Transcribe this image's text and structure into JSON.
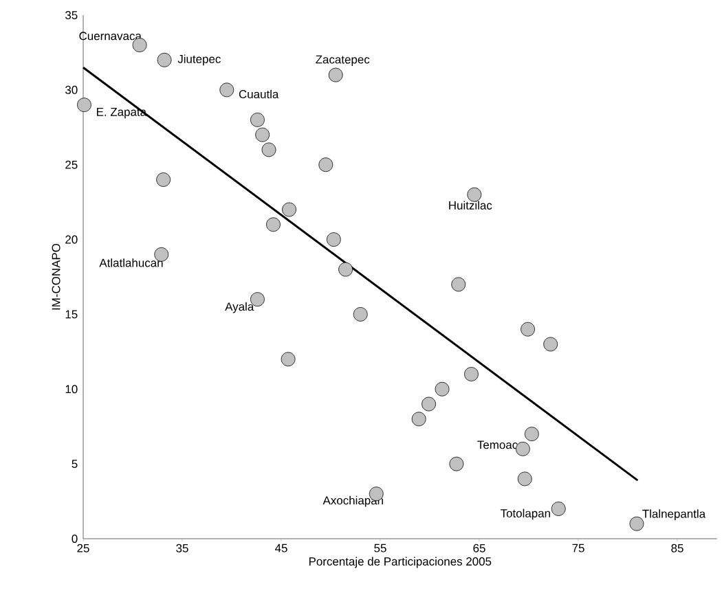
{
  "chart_data": {
    "type": "scatter",
    "xlabel": "Porcentaje de Participaciones 2005",
    "ylabel": "IM-CONAPO",
    "xlim": [
      25,
      89
    ],
    "ylim": [
      0,
      35
    ],
    "xticks": [
      25,
      35,
      45,
      55,
      65,
      75,
      85
    ],
    "yticks": [
      0,
      5,
      10,
      15,
      20,
      25,
      30,
      35
    ],
    "grid": false,
    "series": [
      {
        "color": "#c0c0c0",
        "marker": "circle",
        "x": [
          30.7,
          33.2,
          25.1,
          39.5,
          50.5,
          42.6,
          43.1,
          43.75,
          49.5,
          33.1,
          64.5,
          45.8,
          44.2,
          50.3,
          32.9,
          51.5,
          62.9,
          42.6,
          53.0,
          69.9,
          72.2,
          45.7,
          64.2,
          61.25,
          59.9,
          58.9,
          70.3,
          69.4,
          62.7,
          69.6,
          54.6,
          73.0,
          80.9
        ],
        "values": [
          33,
          32,
          29,
          30,
          31,
          28,
          27,
          26,
          25,
          24,
          23,
          22,
          21,
          20,
          19,
          18,
          17,
          16,
          15,
          14,
          13,
          12,
          11,
          10,
          9,
          8,
          7,
          6,
          5,
          4,
          3,
          2,
          1
        ]
      },
      {
        "type": "line",
        "color": "#000000",
        "marker": "none",
        "x": [
          25,
          81
        ],
        "values": [
          31.5,
          3.9
        ]
      }
    ],
    "annotations": [
      {
        "text": "Cuernavaca",
        "x": 30.7,
        "y": 33
      },
      {
        "text": "Jiutepec",
        "x": 33.2,
        "y": 32
      },
      {
        "text": "E. Zapata",
        "x": 25.1,
        "y": 29
      },
      {
        "text": "Cuautla",
        "x": 39.5,
        "y": 30
      },
      {
        "text": "Zacatepec",
        "x": 50.5,
        "y": 31
      },
      {
        "text": "Huitzilac",
        "x": 64.5,
        "y": 23
      },
      {
        "text": "Atlatlahucan",
        "x": 32.9,
        "y": 19
      },
      {
        "text": "Ayala",
        "x": 42.6,
        "y": 16
      },
      {
        "text": "Temoac",
        "x": 69.4,
        "y": 6
      },
      {
        "text": "Axochiapan",
        "x": 54.6,
        "y": 3
      },
      {
        "text": "Totolapan",
        "x": 73.0,
        "y": 2
      },
      {
        "text": "Tlalnepantla",
        "x": 80.9,
        "y": 1
      }
    ]
  }
}
